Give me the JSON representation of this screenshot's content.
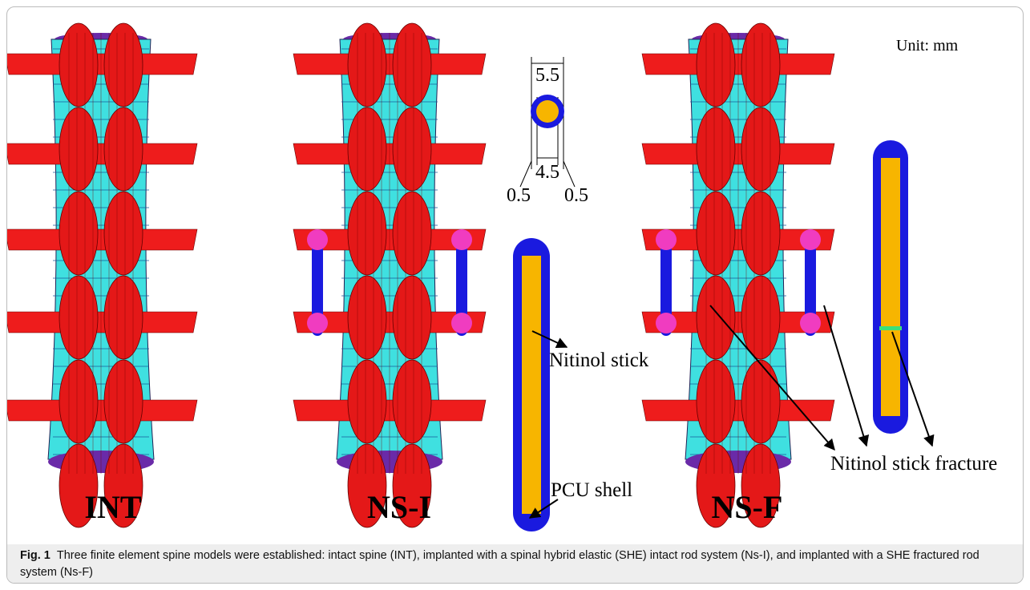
{
  "figure": {
    "unit": "Unit: mm",
    "models": [
      "INT",
      "NS-I",
      "NS-F"
    ],
    "dimensions": {
      "outer": "5.5",
      "inner": "4.5",
      "left_wall": "0.5",
      "right_wall": "0.5"
    },
    "labels": {
      "stick": "Nitinol stick",
      "shell": "PCU shell",
      "fracture": "Nitinol stick fracture"
    }
  },
  "caption": {
    "label": "Fig. 1",
    "text": "Three finite element spine models were established: intact spine (INT), implanted with a spinal hybrid elastic (SHE) intact rod system (Ns-I), and implanted with a SHE fractured rod system (Ns-F)"
  }
}
